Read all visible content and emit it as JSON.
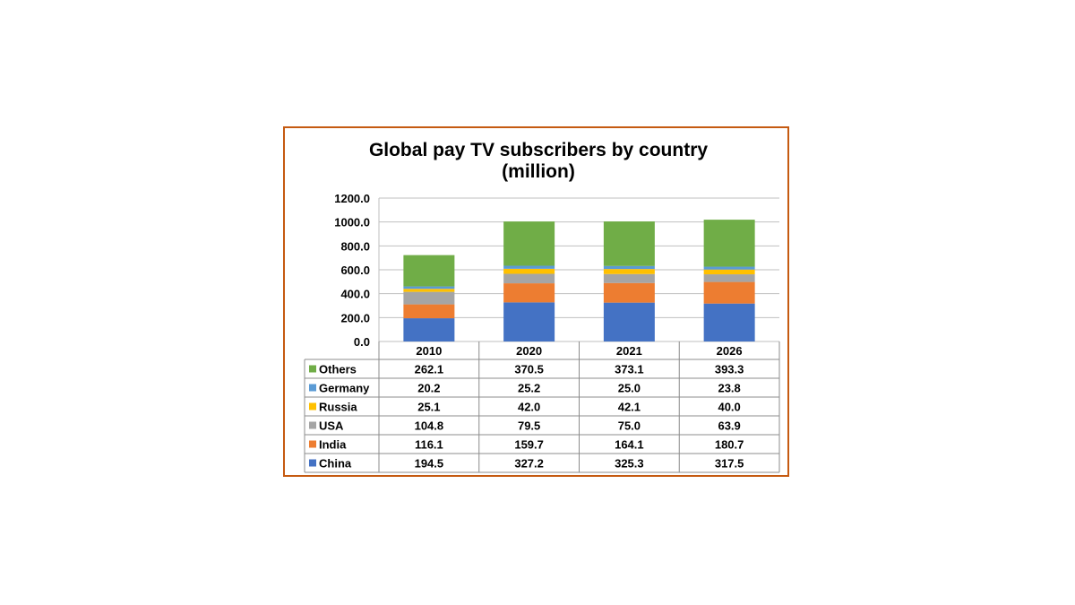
{
  "chart_data": {
    "type": "bar",
    "stacked": true,
    "title": "Global pay TV subscribers by country",
    "subtitle": "(million)",
    "categories": [
      "2010",
      "2020",
      "2021",
      "2026"
    ],
    "ylim": [
      0,
      1200
    ],
    "yticks": [
      "0.0",
      "200.0",
      "400.0",
      "600.0",
      "800.0",
      "1000.0",
      "1200.0"
    ],
    "grid": true,
    "data_table": true,
    "series": [
      {
        "name": "China",
        "color": "#4472c4",
        "values": [
          194.5,
          327.2,
          325.3,
          317.5
        ],
        "labels": [
          "194.5",
          "327.2",
          "325.3",
          "317.5"
        ]
      },
      {
        "name": "India",
        "color": "#ed7d31",
        "values": [
          116.1,
          159.7,
          164.1,
          180.7
        ],
        "labels": [
          "116.1",
          "159.7",
          "164.1",
          "180.7"
        ]
      },
      {
        "name": "USA",
        "color": "#a5a5a5",
        "values": [
          104.8,
          79.5,
          75.0,
          63.9
        ],
        "labels": [
          "104.8",
          "79.5",
          "75.0",
          "63.9"
        ]
      },
      {
        "name": "Russia",
        "color": "#ffc000",
        "values": [
          25.1,
          42.0,
          42.1,
          40.0
        ],
        "labels": [
          "25.1",
          "42.0",
          "42.1",
          "40.0"
        ]
      },
      {
        "name": "Germany",
        "color": "#5b9bd5",
        "values": [
          20.2,
          25.2,
          25.0,
          23.8
        ],
        "labels": [
          "20.2",
          "25.2",
          "25.0",
          "23.8"
        ]
      },
      {
        "name": "Others",
        "color": "#70ad47",
        "values": [
          262.1,
          370.5,
          373.1,
          393.3
        ],
        "labels": [
          "262.1",
          "370.5",
          "373.1",
          "393.3"
        ]
      }
    ]
  }
}
